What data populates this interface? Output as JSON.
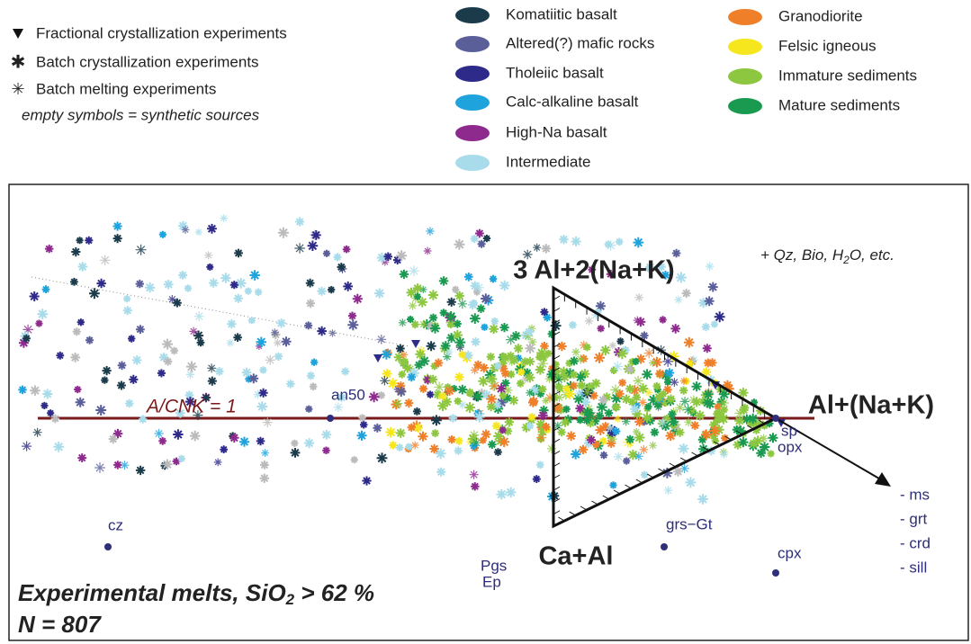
{
  "legend_symbols": [
    "Fractional crystallization experiments",
    "Batch crystallization experiments",
    "Batch melting experiments",
    "empty symbols = synthetic sources"
  ],
  "legend_sources": [
    {
      "name": "Komatiitic basalt",
      "color": "#1b3b4b"
    },
    {
      "name": "Altered(?) mafic rocks",
      "color": "#5a5f9a"
    },
    {
      "name": "Tholeiic basalt",
      "color": "#2e2a8a"
    },
    {
      "name": "Calc-alkaline basalt",
      "color": "#1fa3dc"
    },
    {
      "name": "High-Na basalt",
      "color": "#8e2a8e"
    },
    {
      "name": "Intermediate",
      "color": "#a8dcea"
    },
    {
      "name": "Granodiorite",
      "color": "#f07f2a"
    },
    {
      "name": "Felsic igneous",
      "color": "#f5e61e"
    },
    {
      "name": "Immature sediments",
      "color": "#8dc63f"
    },
    {
      "name": "Mature sediments",
      "color": "#1a9a50"
    }
  ],
  "diagram": {
    "apex_top": "3 Al+2(Na+K)",
    "apex_right": "Al+(Na+K)",
    "apex_bottom": "Ca+Al",
    "reference_line": "A/CNK = 1",
    "additional": [
      "+ Qz, Bio, H",
      "2",
      "O, etc."
    ],
    "minerals": [
      "cz",
      "an50",
      "grs−Gt",
      "cpx",
      "Pgs",
      "Ep",
      "sp",
      "opx"
    ],
    "projection": [
      "- ms",
      "- grt",
      "- crd",
      "- sill"
    ],
    "caption": [
      "Experimental melts, SiO",
      "2",
      " > 62 %"
    ],
    "count": "N = 807"
  }
}
